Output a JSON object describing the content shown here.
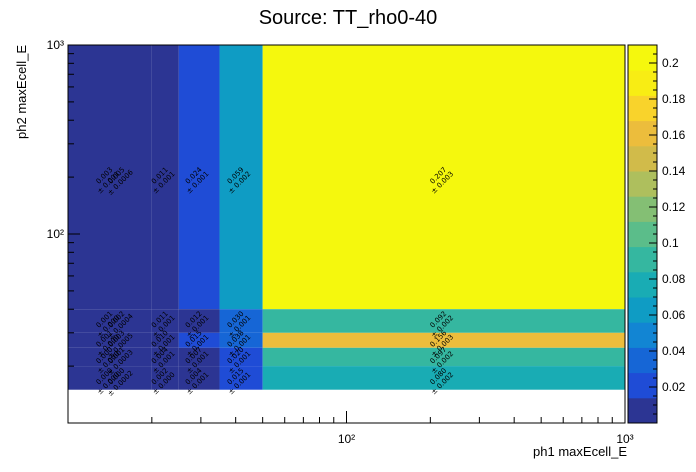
{
  "chart_data": {
    "type": "heatmap",
    "title": "Source: TT_rho0-40",
    "xlabel": "ph1 maxEcell_E",
    "ylabel": "ph2 maxEcell_E",
    "x_scale": "log",
    "y_scale": "log",
    "xlim": [
      10,
      1000
    ],
    "ylim": [
      10,
      1000
    ],
    "x_ticks": [
      {
        "value": 100,
        "label": "10²"
      },
      {
        "value": 1000,
        "label": "10³"
      }
    ],
    "y_ticks": [
      {
        "value": 100,
        "label": "10²"
      },
      {
        "value": 1000,
        "label": "10³"
      }
    ],
    "x_edges": [
      10,
      20,
      25,
      35,
      50,
      1000
    ],
    "y_edges": [
      10,
      15,
      20,
      25,
      30,
      40,
      1000
    ],
    "cells": [
      {
        "x": 0,
        "y": 5,
        "value": 0.003,
        "labels": [
          "0.003",
          "± 0.001",
          "0.005",
          "± 0.0006"
        ]
      },
      {
        "x": 1,
        "y": 5,
        "value": 0.011,
        "labels": [
          "0.011",
          "± 0.001"
        ]
      },
      {
        "x": 2,
        "y": 5,
        "value": 0.024,
        "labels": [
          "0.024",
          "± 0.001"
        ]
      },
      {
        "x": 3,
        "y": 5,
        "value": 0.059,
        "labels": [
          "0.059",
          "± 0.002"
        ]
      },
      {
        "x": 4,
        "y": 5,
        "value": 0.207,
        "labels": [
          "0.207",
          "± 0.003"
        ]
      },
      {
        "x": 0,
        "y": 4,
        "value": 0.001,
        "labels": [
          "0.001",
          "± 0.000",
          "0.002",
          "± 0.0004"
        ]
      },
      {
        "x": 1,
        "y": 4,
        "value": 0.011,
        "labels": [
          "0.011",
          "± 0.001"
        ]
      },
      {
        "x": 2,
        "y": 4,
        "value": 0.012,
        "labels": [
          "0.012",
          "± 0.001"
        ]
      },
      {
        "x": 3,
        "y": 4,
        "value": 0.03,
        "labels": [
          "0.030",
          "± 0.001"
        ]
      },
      {
        "x": 4,
        "y": 4,
        "value": 0.092,
        "labels": [
          "0.092",
          "± 0.002"
        ]
      },
      {
        "x": 0,
        "y": 3,
        "value": 0.001,
        "labels": [
          "0.001",
          "± 0.000",
          "0.003",
          "± 0.0005"
        ]
      },
      {
        "x": 1,
        "y": 3,
        "value": 0.01,
        "labels": [
          "0.010",
          "± 0.001"
        ]
      },
      {
        "x": 2,
        "y": 3,
        "value": 0.015,
        "labels": [
          "0.015",
          "± 0.001"
        ]
      },
      {
        "x": 3,
        "y": 3,
        "value": 0.038,
        "labels": [
          "0.038",
          "± 0.001"
        ]
      },
      {
        "x": 4,
        "y": 3,
        "value": 0.156,
        "labels": [
          "0.156",
          "± 0.003"
        ]
      },
      {
        "x": 0,
        "y": 2,
        "value": 0.0,
        "labels": [
          "0.000",
          "± 0.000",
          "0.001",
          "± 0.0003"
        ]
      },
      {
        "x": 1,
        "y": 2,
        "value": 0.004,
        "labels": [
          "0.004",
          "± 0.001"
        ]
      },
      {
        "x": 2,
        "y": 2,
        "value": 0.007,
        "labels": [
          "0.007",
          "± 0.001"
        ]
      },
      {
        "x": 3,
        "y": 2,
        "value": 0.02,
        "labels": [
          "0.020",
          "± 0.001"
        ]
      },
      {
        "x": 4,
        "y": 2,
        "value": 0.097,
        "labels": [
          "0.097",
          "± 0.002"
        ]
      },
      {
        "x": 0,
        "y": 1,
        "value": 0.0,
        "labels": [
          "0.000",
          "± 0.000",
          "0.000",
          "± 0.0002"
        ]
      },
      {
        "x": 1,
        "y": 1,
        "value": 0.002,
        "labels": [
          "0.002",
          "± 0.000"
        ]
      },
      {
        "x": 2,
        "y": 1,
        "value": 0.004,
        "labels": [
          "0.004",
          "± 0.001"
        ]
      },
      {
        "x": 3,
        "y": 1,
        "value": 0.015,
        "labels": [
          "0.015",
          "± 0.001"
        ]
      },
      {
        "x": 4,
        "y": 1,
        "value": 0.08,
        "labels": [
          "0.080",
          "± 0.002"
        ]
      }
    ],
    "colorbar": {
      "min": 0.0,
      "max": 0.21,
      "ticks": [
        "0.02",
        "0.04",
        "0.06",
        "0.08",
        "0.1",
        "0.12",
        "0.14",
        "0.16",
        "0.18",
        "0.2"
      ],
      "tick_values": [
        0.02,
        0.04,
        0.06,
        0.08,
        0.1,
        0.12,
        0.14,
        0.16,
        0.18,
        0.2
      ],
      "palette": [
        "#2c3593",
        "#1f4cd6",
        "#1666d6",
        "#1285d3",
        "#0f9cc4",
        "#19acb4",
        "#35b7a0",
        "#5bbd8a",
        "#84bf74",
        "#aebf5d",
        "#d1bb4a",
        "#ecbd3c",
        "#f9d32b",
        "#f8ed14",
        "#f5f80d"
      ]
    }
  }
}
